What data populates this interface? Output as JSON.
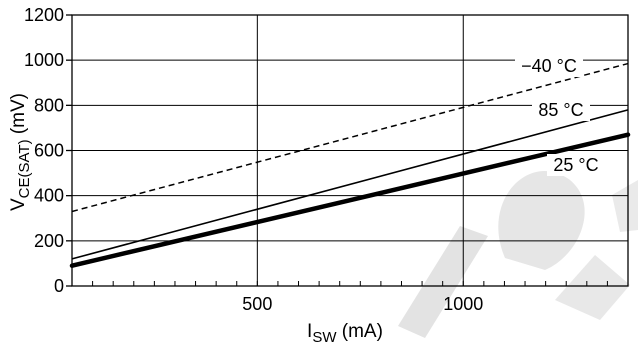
{
  "chart_data": {
    "type": "line",
    "title": "",
    "xlabel": {
      "main": "I",
      "sub": "SW",
      "unit": " (mA)"
    },
    "ylabel": {
      "main": "V",
      "sub": "CE(SAT)",
      "unit": " (mV)"
    },
    "xlim": [
      50,
      1400
    ],
    "ylim": [
      0,
      1200
    ],
    "x_major_ticks": [
      500,
      1000
    ],
    "x_minor_step": 50,
    "y_ticks": [
      0,
      200,
      400,
      600,
      800,
      1000,
      1200
    ],
    "grid": true,
    "series": [
      {
        "name": "−40 °C",
        "style": "dashed",
        "x": [
          50,
          1400
        ],
        "y": [
          330,
          985
        ]
      },
      {
        "name": "85 °C",
        "style": "thin",
        "x": [
          50,
          1400
        ],
        "y": [
          120,
          780
        ]
      },
      {
        "name": "25 °C",
        "style": "bold",
        "x": [
          50,
          1400
        ],
        "y": [
          90,
          670
        ]
      }
    ]
  },
  "watermark": {
    "text": "NOT RECOMMENDED FOR NEW DESIGN",
    "color": "#dddddd"
  }
}
